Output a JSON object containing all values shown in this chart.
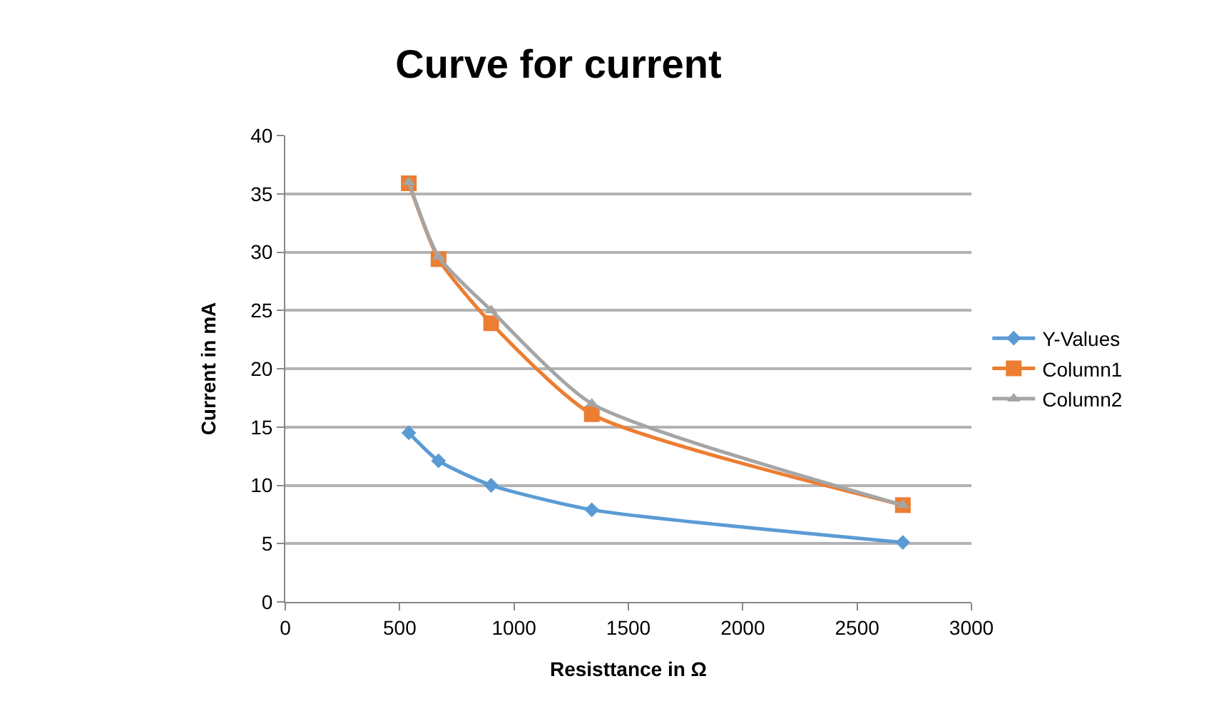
{
  "chart_data": {
    "type": "line",
    "title": "Curve for current",
    "xlabel": "Resisttance in Ω",
    "ylabel": "Current in mA",
    "x": [
      540,
      670,
      900,
      1340,
      2700
    ],
    "series": [
      {
        "name": "Y-Values",
        "color": "#5b9bd5",
        "marker": "diamond",
        "values": [
          14.5,
          12.1,
          10.0,
          7.9,
          5.1
        ]
      },
      {
        "name": "Column1",
        "color": "#ed7d31",
        "marker": "square",
        "values": [
          35.9,
          29.4,
          23.9,
          16.1,
          8.3
        ]
      },
      {
        "name": "Column2",
        "color": "#a5a5a5",
        "marker": "triangle",
        "values": [
          36.0,
          29.6,
          25.0,
          17.0,
          8.3
        ]
      }
    ],
    "xlim": [
      0,
      3000
    ],
    "xticks": [
      0,
      500,
      1000,
      1500,
      2000,
      2500,
      3000
    ],
    "ylim": [
      0,
      40
    ],
    "yticks": [
      0,
      5,
      10,
      15,
      20,
      25,
      30,
      35,
      40
    ],
    "grid": "y",
    "legend": "right",
    "line_style": "solid"
  }
}
